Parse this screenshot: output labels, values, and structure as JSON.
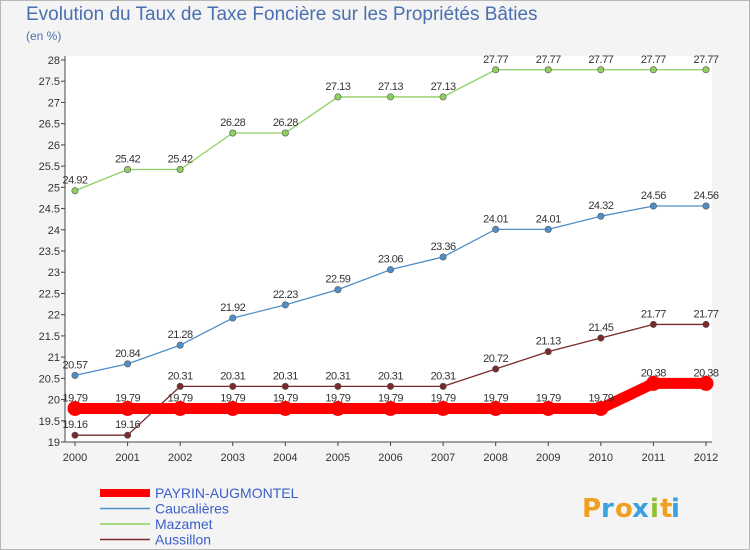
{
  "chart_data": {
    "type": "line",
    "title": "Evolution du Taux de Taxe Foncière sur les Propriétés Bâties",
    "subtitle": "(en %)",
    "x": [
      "2000",
      "2001",
      "2002",
      "2003",
      "2004",
      "2005",
      "2006",
      "2007",
      "2008",
      "2009",
      "2010",
      "2011",
      "2012"
    ],
    "ylim": [
      19,
      28
    ],
    "yticks": [
      19,
      19.5,
      20,
      20.5,
      21,
      21.5,
      22,
      22.5,
      23,
      23.5,
      24,
      24.5,
      25,
      25.5,
      26,
      26.5,
      27,
      27.5,
      28
    ],
    "grid": false,
    "legend_position": "bottom-left",
    "series": [
      {
        "name": "PAYRIN-AUGMONTEL",
        "color": "#ff0000",
        "values": [
          19.79,
          19.79,
          19.79,
          19.79,
          19.79,
          19.79,
          19.79,
          19.79,
          19.79,
          19.79,
          19.79,
          20.38,
          20.38
        ]
      },
      {
        "name": "Caucalières",
        "color": "#4f8fc8",
        "values": [
          20.57,
          20.84,
          21.28,
          21.92,
          22.23,
          22.59,
          23.06,
          23.36,
          24.01,
          24.01,
          24.32,
          24.56,
          24.56
        ]
      },
      {
        "name": "Mazamet",
        "color": "#8fd060",
        "values": [
          24.92,
          25.42,
          25.42,
          26.28,
          26.28,
          27.13,
          27.13,
          27.13,
          27.77,
          27.77,
          27.77,
          27.77,
          27.77
        ]
      },
      {
        "name": "Aussillon",
        "color": "#7a2a2a",
        "values": [
          19.16,
          19.16,
          20.31,
          20.31,
          20.31,
          20.31,
          20.31,
          20.31,
          20.72,
          21.13,
          21.45,
          21.77,
          21.77
        ]
      }
    ]
  },
  "logo": {
    "letters": [
      "P",
      "r",
      "o",
      "x",
      "i",
      "t",
      "i"
    ],
    "colors": [
      "#f0a020",
      "#3aa0e0",
      "#f0a020",
      "#3aa0e0",
      "#90c030",
      "#f0a020",
      "#3aa0e0"
    ]
  }
}
